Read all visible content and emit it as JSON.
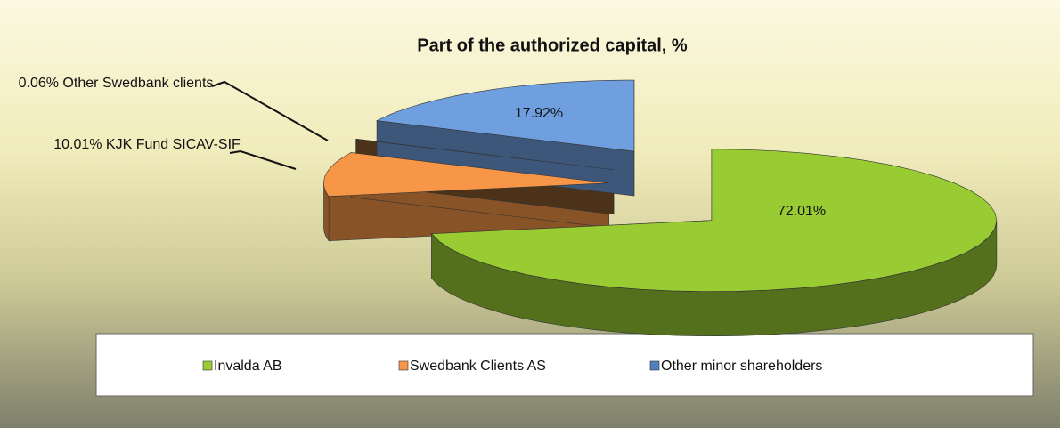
{
  "chart_data": {
    "type": "pie",
    "title": "Part of the authorized capital, %",
    "values": [
      72.01,
      10.01,
      0.06,
      17.92
    ],
    "value_labels": [
      "72.01%",
      "10.01%",
      "0.06%",
      "17.92%"
    ],
    "slice_labels": [
      null,
      "KJK Fund SICAV-SIF",
      "Other Swedbank clients",
      null
    ],
    "colors": [
      "#99cc33",
      "#f79646",
      "#8b5a2b",
      "#6f9fdf"
    ],
    "legend": [
      {
        "name": "Invalda AB",
        "color": "#99cc33"
      },
      {
        "name": "Swedbank Clients AS",
        "color": "#f79646"
      },
      {
        "name": "Other minor shareholders",
        "color": "#4f81bd"
      }
    ]
  }
}
